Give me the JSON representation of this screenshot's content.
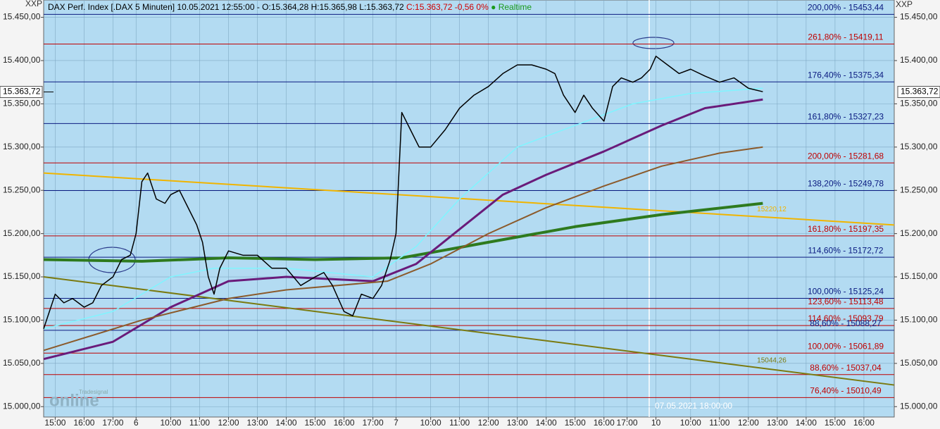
{
  "chart_data": {
    "type": "line",
    "title": "DAX Perf. Index [.DAX 5 Minuten] 10.05.2021 12:55:00 - O:15.364,28 H:15.365,98 L:15.363,72",
    "title_change": "C:15.363,72 -0,56 0%",
    "title_status": "● Realtime",
    "y_axis_label": "XXP",
    "xlim": [
      -0.4,
      29.05
    ],
    "ylim": [
      14988,
      15470
    ],
    "xticks": [
      {
        "value": 0,
        "label": "15:00"
      },
      {
        "value": 1,
        "label": "16:00"
      },
      {
        "value": 2,
        "label": "17:00"
      },
      {
        "value": 2.8,
        "label": "6"
      },
      {
        "value": 4,
        "label": "10:00"
      },
      {
        "value": 5,
        "label": "11:00"
      },
      {
        "value": 6,
        "label": "12:00"
      },
      {
        "value": 7,
        "label": "13:00"
      },
      {
        "value": 8,
        "label": "14:00"
      },
      {
        "value": 9,
        "label": "15:00"
      },
      {
        "value": 10,
        "label": "16:00"
      },
      {
        "value": 11,
        "label": "17:00"
      },
      {
        "value": 11.8,
        "label": "7"
      },
      {
        "value": 13,
        "label": "10:00"
      },
      {
        "value": 14,
        "label": "11:00"
      },
      {
        "value": 15,
        "label": "12:00"
      },
      {
        "value": 16,
        "label": "13:00"
      },
      {
        "value": 17,
        "label": "14:00"
      },
      {
        "value": 18,
        "label": "15:00"
      },
      {
        "value": 19,
        "label": "16:00"
      },
      {
        "value": 19.8,
        "label": "17:00"
      },
      {
        "value": 20.8,
        "label": "10"
      },
      {
        "value": 22,
        "label": "10:00"
      },
      {
        "value": 23,
        "label": "11:00"
      },
      {
        "value": 24,
        "label": "12:00"
      },
      {
        "value": 25,
        "label": "13:00"
      },
      {
        "value": 26,
        "label": "14:00"
      },
      {
        "value": 27,
        "label": "15:00"
      },
      {
        "value": 28,
        "label": "16:00"
      }
    ],
    "yticks": [
      {
        "value": 15000,
        "label": "15.000,00"
      },
      {
        "value": 15050,
        "label": "15.050,00"
      },
      {
        "value": 15100,
        "label": "15.100,00"
      },
      {
        "value": 15150,
        "label": "15.150,00"
      },
      {
        "value": 15200,
        "label": "15.200,00"
      },
      {
        "value": 15250,
        "label": "15.250,00"
      },
      {
        "value": 15300,
        "label": "15.300,00"
      },
      {
        "value": 15350,
        "label": "15.350,00"
      },
      {
        "value": 15400,
        "label": "15.400,00"
      },
      {
        "value": 15450,
        "label": "15.450,00"
      }
    ],
    "grid": true,
    "current_price": {
      "value": 15363.72,
      "label": "15.363,72"
    },
    "series": [
      {
        "color": "#2e7a1e",
        "width": 4,
        "x": [
          -0.4,
          3,
          6,
          9,
          12,
          15,
          18,
          21,
          24.5
        ],
        "values": [
          15170,
          15168,
          15172,
          15170,
          15172,
          15190,
          15208,
          15222,
          15235
        ]
      },
      {
        "color": "#6a1b7a",
        "width": 3,
        "x": [
          -0.4,
          2,
          4,
          6,
          8,
          11,
          12.5,
          14,
          15.5,
          17,
          19,
          21,
          22.5,
          24.5
        ],
        "values": [
          15055,
          15075,
          15115,
          15145,
          15150,
          15145,
          15165,
          15205,
          15245,
          15268,
          15295,
          15325,
          15345,
          15355
        ]
      },
      {
        "color": "#8b5a2b",
        "width": 2,
        "x": [
          -0.4,
          3,
          6,
          8,
          11.5,
          13,
          15,
          17,
          19,
          21,
          23,
          24.5
        ],
        "values": [
          15065,
          15100,
          15125,
          15135,
          15145,
          15165,
          15200,
          15230,
          15255,
          15278,
          15293,
          15300
        ]
      },
      {
        "color": "#7ff5ff",
        "width": 1.5,
        "x": [
          -0.4,
          2,
          4,
          5.5,
          8,
          11,
          12.5,
          14,
          16,
          18,
          20,
          22,
          24.5
        ],
        "values": [
          15090,
          15110,
          15150,
          15160,
          15160,
          15150,
          15185,
          15240,
          15300,
          15325,
          15350,
          15362,
          15368
        ]
      },
      {
        "color": "#000000",
        "width": 1.5,
        "x": [
          -0.4,
          -0.2,
          0,
          0.3,
          0.6,
          1,
          1.3,
          1.6,
          2,
          2.3,
          2.6,
          2.8,
          3.0,
          3.2,
          3.5,
          3.8,
          4,
          4.3,
          4.6,
          4.9,
          5.1,
          5.3,
          5.5,
          5.7,
          6,
          6.5,
          7,
          7.5,
          8,
          8.5,
          9,
          9.3,
          9.6,
          10,
          10.3,
          10.6,
          11,
          11.3,
          11.6,
          11.8,
          12.0,
          12.3,
          12.6,
          13,
          13.5,
          14,
          14.5,
          15,
          15.5,
          16,
          16.5,
          17,
          17.3,
          17.6,
          18,
          18.3,
          18.6,
          19,
          19.3,
          19.6,
          20,
          20.3,
          20.6,
          20.8,
          21.2,
          21.6,
          22,
          22.5,
          23,
          23.5,
          24,
          24.5
        ],
        "values": [
          15090,
          15110,
          15130,
          15120,
          15125,
          15115,
          15120,
          15140,
          15150,
          15170,
          15175,
          15200,
          15260,
          15270,
          15240,
          15235,
          15245,
          15250,
          15230,
          15210,
          15190,
          15150,
          15130,
          15160,
          15180,
          15175,
          15175,
          15160,
          15160,
          15140,
          15150,
          15155,
          15140,
          15110,
          15105,
          15130,
          15125,
          15140,
          15170,
          15200,
          15340,
          15320,
          15300,
          15300,
          15320,
          15345,
          15360,
          15370,
          15385,
          15395,
          15395,
          15390,
          15385,
          15360,
          15340,
          15360,
          15345,
          15330,
          15370,
          15380,
          15375,
          15380,
          15390,
          15405,
          15395,
          15385,
          15390,
          15382,
          15375,
          15380,
          15368,
          15364
        ]
      }
    ],
    "trendlines": [
      {
        "color": "#f0b400",
        "x": [
          -0.4,
          29.05
        ],
        "values": [
          15270,
          15210
        ],
        "label": "15220,12"
      },
      {
        "color": "#7a7a10",
        "x": [
          -0.4,
          29.05
        ],
        "values": [
          15150,
          15025
        ],
        "label": "15044,26"
      }
    ],
    "levels": [
      {
        "value": 15453.44,
        "label": "200,00% - 15453,44",
        "color": "#0a1a80"
      },
      {
        "value": 15419.11,
        "label": "261,80% - 15419,11",
        "color": "#c00000"
      },
      {
        "value": 15375.34,
        "label": "176,40% - 15375,34",
        "color": "#0a1a80"
      },
      {
        "value": 15327.23,
        "label": "161,80% - 15327,23",
        "color": "#0a1a80"
      },
      {
        "value": 15281.68,
        "label": "200,00% - 15281,68",
        "color": "#c00000"
      },
      {
        "value": 15249.78,
        "label": "138,20% - 15249,78",
        "color": "#0a1a80"
      },
      {
        "value": 15197.35,
        "label": "161,80% - 15197,35",
        "color": "#c00000"
      },
      {
        "value": 15172.72,
        "label": "114,60% - 15172,72",
        "color": "#0a1a80"
      },
      {
        "value": 15125.24,
        "label": "100,00% - 15125,24",
        "color": "#0a1a80"
      },
      {
        "value": 15113.48,
        "label": "123,60% - 15113,48",
        "color": "#c00000"
      },
      {
        "value": 15093.79,
        "label": "114,60% - 15093,79",
        "color": "#c00000"
      },
      {
        "value": 15088.27,
        "label": "88,60% - 15088,27",
        "color": "#0a1a80"
      },
      {
        "value": 15061.89,
        "label": "100,00% - 15061,89",
        "color": "#c00000"
      },
      {
        "value": 15037.04,
        "label": "88,60% - 15037,04",
        "color": "#c00000"
      },
      {
        "value": 15010.49,
        "label": "76,40% - 15010,49",
        "color": "#c00000"
      }
    ],
    "annotation": "07.05.2021 18:00:00",
    "watermark": [
      "Tradesignal",
      "online"
    ]
  }
}
